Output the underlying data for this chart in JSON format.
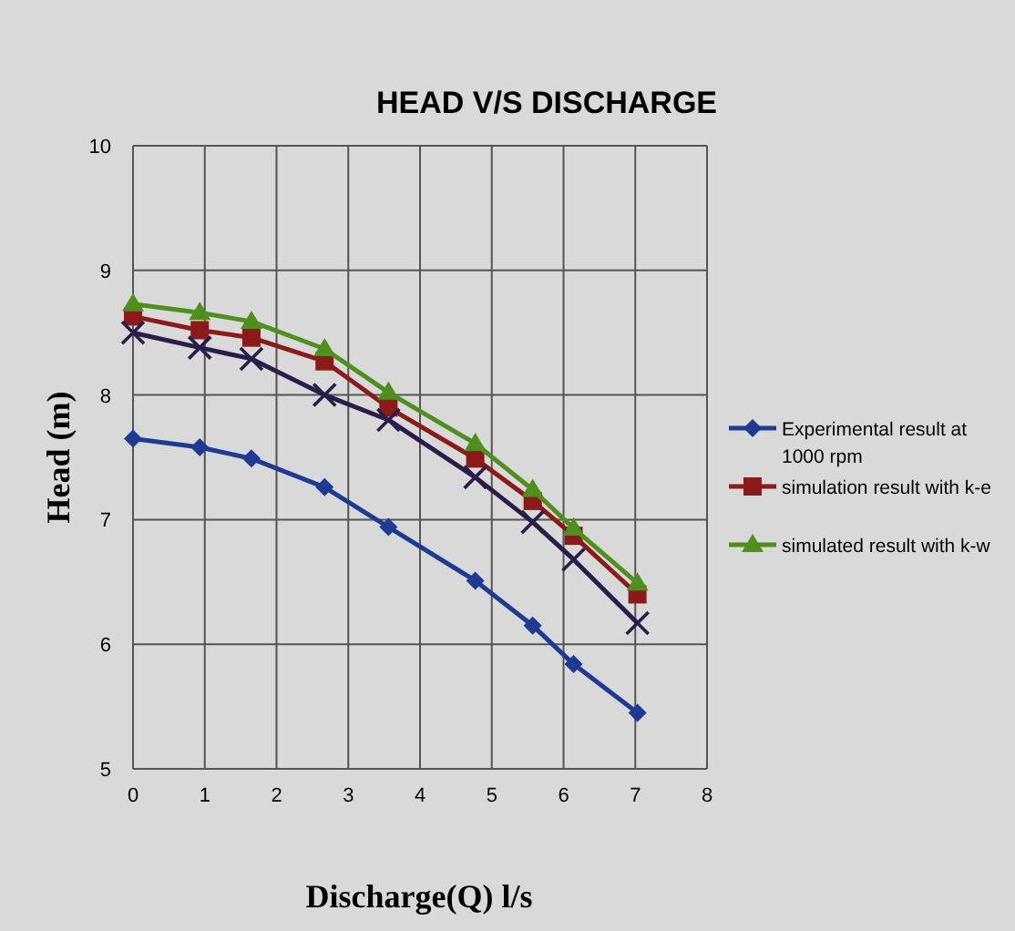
{
  "chart_data": {
    "type": "line",
    "title": "HEAD V/S DISCHARGE",
    "xlabel": "Discharge(Q) l/s",
    "ylabel": "Head (m)",
    "xlim": [
      0,
      8
    ],
    "xticks": [
      0,
      1,
      2,
      3,
      4,
      5,
      6,
      7,
      8
    ],
    "ylim": [
      5,
      10
    ],
    "yticks": [
      5,
      6,
      7,
      8,
      9,
      10
    ],
    "grid": true,
    "legend": "right",
    "series": [
      {
        "name": "Experimental result at 1000 rpm",
        "color": "#1f3a93",
        "marker": "diamond",
        "x": [
          0,
          0.93,
          1.65,
          2.67,
          3.56,
          4.77,
          5.57,
          6.14,
          7.03
        ],
        "values": [
          7.65,
          7.58,
          7.49,
          7.26,
          6.94,
          6.51,
          6.15,
          5.84,
          5.45
        ]
      },
      {
        "name": "simulation result with k-e",
        "color": "#8b1a1a",
        "marker": "square",
        "x": [
          0,
          0.93,
          1.65,
          2.67,
          3.56,
          4.77,
          5.57,
          6.14,
          7.03
        ],
        "values": [
          8.63,
          8.52,
          8.46,
          8.27,
          7.9,
          7.49,
          7.15,
          6.87,
          6.4
        ]
      },
      {
        "name": "simulated result with k-w",
        "color": "#4e8f1e",
        "marker": "triangle",
        "x": [
          0,
          0.93,
          1.65,
          2.67,
          3.56,
          4.77,
          5.57,
          6.14,
          7.03
        ],
        "values": [
          8.73,
          8.66,
          8.59,
          8.37,
          8.02,
          7.61,
          7.24,
          6.93,
          6.49
        ]
      },
      {
        "color": "#2a1d4a",
        "marker": "cross",
        "x": [
          0,
          0.93,
          1.65,
          2.67,
          3.56,
          4.77,
          5.57,
          6.14,
          7.03
        ],
        "values": [
          8.5,
          8.38,
          8.29,
          8,
          7.8,
          7.34,
          6.98,
          6.68,
          6.17
        ]
      }
    ]
  }
}
